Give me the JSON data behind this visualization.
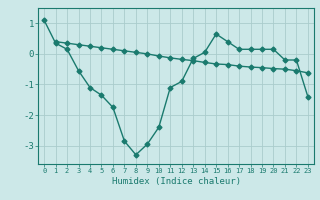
{
  "line1_x": [
    0,
    1,
    2,
    3,
    4,
    5,
    6,
    7,
    8,
    9,
    10,
    11,
    12,
    13,
    14,
    15,
    16,
    17,
    18,
    19,
    20,
    21,
    22,
    23
  ],
  "line1_y": [
    1.1,
    0.35,
    0.15,
    -0.55,
    -1.1,
    -1.35,
    -1.75,
    -2.85,
    -3.3,
    -2.95,
    -2.4,
    -1.1,
    -0.9,
    -0.15,
    0.05,
    0.65,
    0.4,
    0.15,
    0.15,
    0.15,
    0.15,
    -0.2,
    -0.2,
    -1.4
  ],
  "line2_x": [
    1,
    2,
    3,
    4,
    5,
    6,
    7,
    8,
    9,
    10,
    11,
    12,
    13,
    14,
    15,
    16,
    17,
    18,
    19,
    20,
    21,
    22,
    23
  ],
  "line2_y": [
    0.4,
    0.35,
    0.3,
    0.25,
    0.2,
    0.15,
    0.1,
    0.05,
    0.0,
    -0.07,
    -0.13,
    -0.18,
    -0.22,
    -0.28,
    -0.33,
    -0.35,
    -0.4,
    -0.43,
    -0.45,
    -0.48,
    -0.5,
    -0.55,
    -0.62
  ],
  "line_color": "#1a7a6e",
  "bg_color": "#cce8e8",
  "grid_color": "#aacccc",
  "xlabel": "Humidex (Indice chaleur)",
  "xlim": [
    -0.5,
    23.5
  ],
  "ylim": [
    -3.6,
    1.5
  ],
  "yticks": [
    -3,
    -2,
    -1,
    0,
    1
  ],
  "xticks": [
    0,
    1,
    2,
    3,
    4,
    5,
    6,
    7,
    8,
    9,
    10,
    11,
    12,
    13,
    14,
    15,
    16,
    17,
    18,
    19,
    20,
    21,
    22,
    23
  ],
  "marker": "D",
  "markersize": 2.5,
  "linewidth": 1.0
}
